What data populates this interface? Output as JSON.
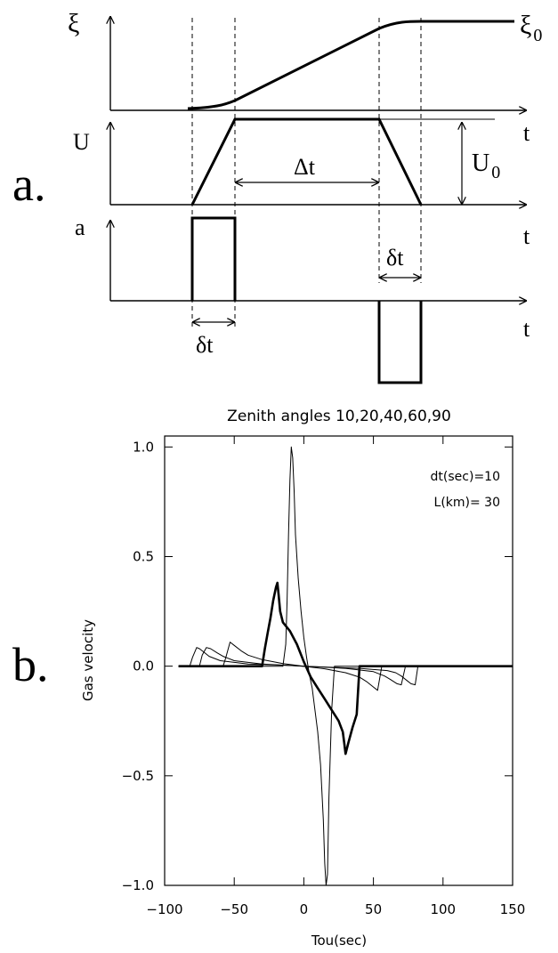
{
  "panel_a": {
    "label": "a.",
    "xi_label": "ξ",
    "xi0_label": "ξ",
    "xi0_sub": "0",
    "u_label": "U",
    "u0_label": "U",
    "u0_sub": "0",
    "a_label": "a",
    "t_label": "t",
    "delta_t_label": "Δt",
    "small_dt_label": "δt"
  },
  "panel_b": {
    "label": "b."
  },
  "chart_data": {
    "type": "line",
    "title": "Zenith angles 10,20,40,60,90",
    "xlabel": "Tou(sec)",
    "ylabel": "Gas velocity",
    "xlim": [
      -100,
      150
    ],
    "ylim": [
      -1.0,
      1.05
    ],
    "xticks": [
      -100,
      -50,
      0,
      50,
      100,
      150
    ],
    "xtick_labels": [
      "−100",
      "−50",
      "0",
      "50",
      "100",
      "150"
    ],
    "yticks": [
      -1.0,
      -0.5,
      0.0,
      0.5,
      1.0
    ],
    "ytick_labels": [
      "−1.0",
      "−0.5",
      "0.0",
      "0.5",
      "1.0"
    ],
    "annotations": [
      "dt(sec)=10",
      "L(km)= 30"
    ],
    "grid": false,
    "series": [
      {
        "bold": false,
        "points": [
          [
            -90,
            0
          ],
          [
            -82,
            0
          ],
          [
            -80,
            0.04
          ],
          [
            -77,
            0.085
          ],
          [
            -75,
            0.08
          ],
          [
            -72,
            0.065
          ],
          [
            -68,
            0.045
          ],
          [
            -60,
            0.025
          ],
          [
            -40,
            0.01
          ],
          [
            -10,
            0.003
          ],
          [
            0,
            0
          ],
          [
            10,
            -0.003
          ],
          [
            40,
            -0.01
          ],
          [
            60,
            -0.02
          ],
          [
            66,
            -0.03
          ],
          [
            70,
            -0.045
          ],
          [
            74,
            -0.065
          ],
          [
            77,
            -0.08
          ],
          [
            80,
            -0.085
          ],
          [
            82,
            0
          ],
          [
            100,
            0
          ],
          [
            150,
            0
          ]
        ]
      },
      {
        "bold": false,
        "points": [
          [
            -90,
            0
          ],
          [
            -75,
            0
          ],
          [
            -73,
            0.05
          ],
          [
            -70,
            0.085
          ],
          [
            -67,
            0.08
          ],
          [
            -62,
            0.06
          ],
          [
            -58,
            0.045
          ],
          [
            -50,
            0.025
          ],
          [
            -30,
            0.01
          ],
          [
            -10,
            0.003
          ],
          [
            0,
            0
          ],
          [
            10,
            -0.003
          ],
          [
            30,
            -0.01
          ],
          [
            50,
            -0.025
          ],
          [
            58,
            -0.045
          ],
          [
            62,
            -0.06
          ],
          [
            67,
            -0.08
          ],
          [
            70,
            -0.085
          ],
          [
            73,
            0
          ],
          [
            100,
            0
          ],
          [
            150,
            0
          ]
        ]
      },
      {
        "bold": false,
        "points": [
          [
            -90,
            0
          ],
          [
            -58,
            0
          ],
          [
            -56,
            0.04
          ],
          [
            -53,
            0.11
          ],
          [
            -50,
            0.095
          ],
          [
            -45,
            0.07
          ],
          [
            -40,
            0.05
          ],
          [
            -30,
            0.03
          ],
          [
            -15,
            0.012
          ],
          [
            0,
            0
          ],
          [
            15,
            -0.012
          ],
          [
            30,
            -0.03
          ],
          [
            40,
            -0.05
          ],
          [
            45,
            -0.07
          ],
          [
            50,
            -0.095
          ],
          [
            53,
            -0.11
          ],
          [
            56,
            0
          ],
          [
            100,
            0
          ],
          [
            150,
            0
          ]
        ]
      },
      {
        "bold": false,
        "points": [
          [
            -90,
            0
          ],
          [
            -15,
            0
          ],
          [
            -13,
            0.1
          ],
          [
            -12,
            0.3
          ],
          [
            -11,
            0.6
          ],
          [
            -10,
            0.85
          ],
          [
            -9,
            1.0
          ],
          [
            -8,
            0.95
          ],
          [
            -7,
            0.8
          ],
          [
            -6,
            0.6
          ],
          [
            -4,
            0.4
          ],
          [
            -2,
            0.25
          ],
          [
            0,
            0.13
          ],
          [
            2,
            0.04
          ],
          [
            4,
            -0.04
          ],
          [
            6,
            -0.1
          ],
          [
            8,
            -0.2
          ],
          [
            10,
            -0.3
          ],
          [
            12,
            -0.45
          ],
          [
            14,
            -0.7
          ],
          [
            15,
            -0.9
          ],
          [
            16,
            -1.0
          ],
          [
            17,
            -0.95
          ],
          [
            18,
            -0.6
          ],
          [
            20,
            -0.2
          ],
          [
            22,
            0
          ],
          [
            150,
            0
          ]
        ]
      },
      {
        "bold": true,
        "points": [
          [
            -90,
            0
          ],
          [
            -30,
            0
          ],
          [
            -28,
            0.08
          ],
          [
            -26,
            0.15
          ],
          [
            -24,
            0.22
          ],
          [
            -22,
            0.3
          ],
          [
            -20,
            0.36
          ],
          [
            -19,
            0.38
          ],
          [
            -18,
            0.32
          ],
          [
            -17,
            0.25
          ],
          [
            -15,
            0.2
          ],
          [
            -10,
            0.16
          ],
          [
            -5,
            0.1
          ],
          [
            0,
            0.02
          ],
          [
            5,
            -0.05
          ],
          [
            10,
            -0.1
          ],
          [
            15,
            -0.15
          ],
          [
            20,
            -0.2
          ],
          [
            25,
            -0.25
          ],
          [
            28,
            -0.3
          ],
          [
            29,
            -0.35
          ],
          [
            30,
            -0.4
          ],
          [
            32,
            -0.35
          ],
          [
            35,
            -0.28
          ],
          [
            38,
            -0.22
          ],
          [
            40,
            0
          ],
          [
            150,
            0
          ]
        ]
      }
    ]
  }
}
